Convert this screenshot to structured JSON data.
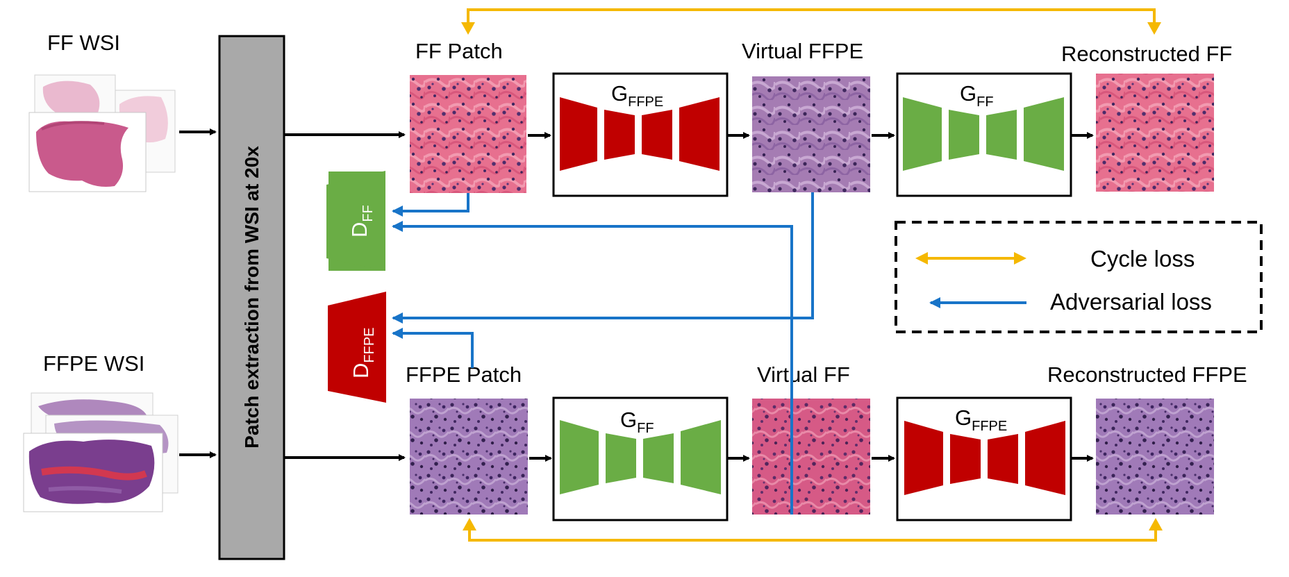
{
  "sources": {
    "ff_wsi": "FF WSI",
    "ffpe_wsi": "FFPE WSI"
  },
  "extraction_bar": "Patch extraction from WSI at 20x",
  "top_row": {
    "input_label": "FF Patch",
    "generator_1": {
      "main": "G",
      "sub": "FFPE"
    },
    "virtual_label": "Virtual FFPE",
    "generator_2": {
      "main": "G",
      "sub": "FF"
    },
    "reconstructed_label": "Reconstructed FF"
  },
  "bottom_row": {
    "input_label": "FFPE Patch",
    "generator_1": {
      "main": "G",
      "sub": "FF"
    },
    "virtual_label": "Virtual FF",
    "generator_2": {
      "main": "G",
      "sub": "FFPE"
    },
    "reconstructed_label": "Reconstructed FFPE"
  },
  "discriminators": {
    "d_ff": {
      "main": "D",
      "sub": "FF"
    },
    "d_ffpe": {
      "main": "D",
      "sub": "FFPE"
    }
  },
  "legend": {
    "cycle": "Cycle loss",
    "adversarial": "Adversarial loss"
  },
  "colors": {
    "cycle_arrow": "#F5B800",
    "adversarial_arrow": "#1874C8",
    "ffpe_generator": "#C00000",
    "ff_generator": "#6AAD45",
    "extraction_bar": "#A9A9A9",
    "ff_tissue": "#E86B8E",
    "ffpe_tissue": "#9B6BB0"
  }
}
